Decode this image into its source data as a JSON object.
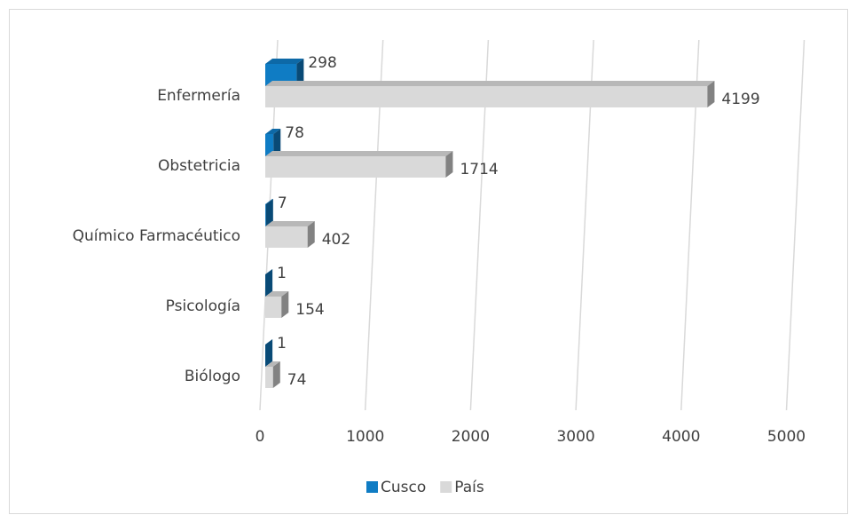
{
  "chart_data": {
    "type": "bar3d",
    "orientation": "horizontal",
    "categories": [
      "Enfermería",
      "Obstetricia",
      "Químico Farmacéutico",
      "Psicología",
      "Biólogo"
    ],
    "series": [
      {
        "name": "Cusco",
        "color": "#0f7cc4",
        "values": [
          298,
          78,
          7,
          1,
          1
        ]
      },
      {
        "name": "País",
        "color": "#d9d9d9",
        "values": [
          4199,
          1714,
          402,
          154,
          74
        ]
      }
    ],
    "xlim": [
      0,
      5000
    ],
    "xticks": [
      0,
      1000,
      2000,
      3000,
      4000,
      5000
    ],
    "grid": true,
    "legend": "bottom"
  }
}
